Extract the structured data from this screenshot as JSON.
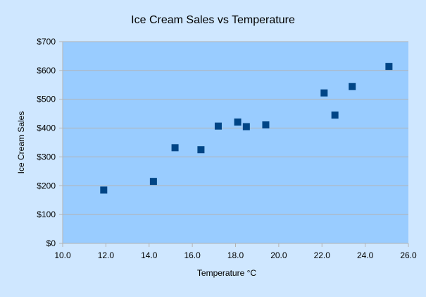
{
  "chart_data": {
    "type": "scatter",
    "title": "Ice Cream Sales vs Temperature",
    "xlabel": "Temperature °C",
    "ylabel": "Ice Cream Sales",
    "xlim": [
      10,
      26
    ],
    "ylim": [
      0,
      700
    ],
    "x_ticks": [
      10,
      12,
      14,
      16,
      18,
      20,
      22,
      24,
      26
    ],
    "y_ticks": [
      0,
      100,
      200,
      300,
      400,
      500,
      600,
      700
    ],
    "x_tick_labels": [
      "10.0",
      "12.0",
      "14.0",
      "16.0",
      "18.0",
      "20.0",
      "22.0",
      "24.0",
      "26.0"
    ],
    "y_tick_labels": [
      "$0",
      "$100",
      "$200",
      "$300",
      "$400",
      "$500",
      "$600",
      "$700"
    ],
    "grid": true,
    "legend": false,
    "points": [
      {
        "x": 11.9,
        "y": 185
      },
      {
        "x": 14.2,
        "y": 215
      },
      {
        "x": 15.2,
        "y": 332
      },
      {
        "x": 16.4,
        "y": 325
      },
      {
        "x": 17.2,
        "y": 407
      },
      {
        "x": 18.1,
        "y": 421
      },
      {
        "x": 18.5,
        "y": 405
      },
      {
        "x": 19.4,
        "y": 411
      },
      {
        "x": 22.1,
        "y": 522
      },
      {
        "x": 22.6,
        "y": 445
      },
      {
        "x": 23.4,
        "y": 544
      },
      {
        "x": 25.1,
        "y": 614
      }
    ],
    "colors": {
      "page_background": "#cfe7ff",
      "plot_background": "#99ccff",
      "gridline": "#b3b3b3",
      "axis": "#b3b3b3",
      "marker": "#004586"
    }
  }
}
